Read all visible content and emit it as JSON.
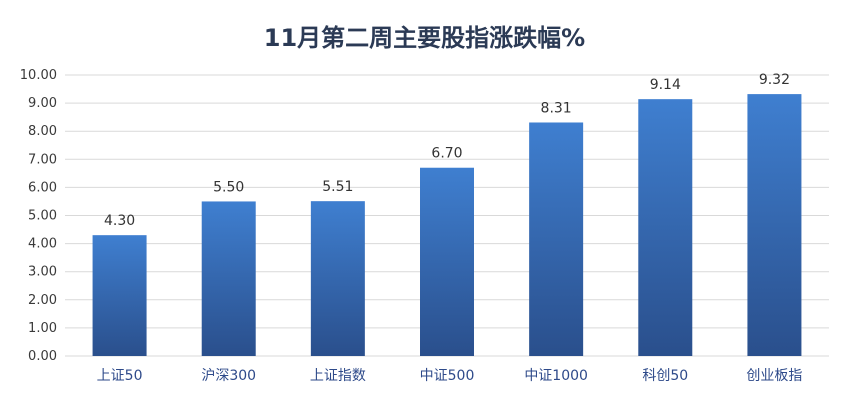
{
  "chart_data": {
    "type": "bar",
    "title": "11月第二周主要股指涨跌幅%",
    "xlabel": "",
    "ylabel": "",
    "categories": [
      "上证50",
      "沪深300",
      "上证指数",
      "中证500",
      "中证1000",
      "科创50",
      "创业板指"
    ],
    "values": [
      4.3,
      5.5,
      5.51,
      6.7,
      8.31,
      9.14,
      9.32
    ],
    "data_labels": [
      "4.30",
      "5.50",
      "5.51",
      "6.70",
      "8.31",
      "9.14",
      "9.32"
    ],
    "ylim": [
      0,
      10
    ],
    "y_ticks": [
      "0.00",
      "1.00",
      "2.00",
      "3.00",
      "4.00",
      "5.00",
      "6.00",
      "7.00",
      "8.00",
      "9.00",
      "10.00"
    ],
    "grid": true,
    "legend": "none",
    "colors": {
      "bar_top": "#3f7fd0",
      "bar_bottom": "#2a4f8c",
      "grid": "#d9d9d9"
    }
  }
}
